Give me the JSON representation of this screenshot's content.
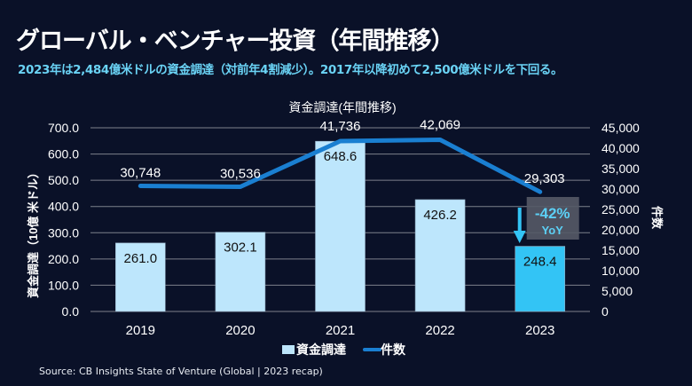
{
  "header": {
    "title": "グローバル・ベンチャー投資（年間推移）",
    "subtitle": "2023年は2,484億米ドルの資金調達（対前年4割減少）。2017年以降初めて2,500億米ドルを下回る。"
  },
  "footer": {
    "source": "Source: CB Insights State of Venture (Global | 2023 recap)"
  },
  "colors": {
    "background": "#0a1128",
    "bar": "#bde6fc",
    "bar_highlight": "#33c4f5",
    "line": "#1a7fd1",
    "gridline": "#7d818b",
    "subtitle": "#6ad3f5",
    "callout_box": "#555a66",
    "callout_text": "#5cd0f5"
  },
  "chart_data": {
    "type": "bar",
    "title": "資金調達(年間推移)",
    "categories": [
      "2019",
      "2020",
      "2021",
      "2022",
      "2023"
    ],
    "series": [
      {
        "name": "資金調達",
        "type": "bar",
        "axis": "left",
        "values": [
          261.0,
          302.1,
          648.6,
          426.2,
          248.4
        ],
        "labels": [
          "261.0",
          "302.1",
          "648.6",
          "426.2",
          "248.4"
        ],
        "highlight_index": 4
      },
      {
        "name": "件数",
        "type": "line",
        "axis": "right",
        "values": [
          30748,
          30536,
          41736,
          42069,
          29303
        ],
        "labels": [
          "30,748",
          "30,536",
          "41,736",
          "42,069",
          "29,303"
        ]
      }
    ],
    "ylabel": "資金調達（10億 米ドル）",
    "ylabel_right": "件数",
    "xlabel": "",
    "ylim": [
      0,
      700
    ],
    "ylim_right": [
      0,
      45000
    ],
    "yticks": [
      "0.0",
      "100.0",
      "200.0",
      "300.0",
      "400.0",
      "500.0",
      "600.0",
      "700.0"
    ],
    "yticks_right": [
      "0",
      "5,000",
      "10,000",
      "15,000",
      "20,000",
      "25,000",
      "30,000",
      "35,000",
      "40,000",
      "45,000"
    ],
    "grid": true,
    "legend": {
      "position": "bottom",
      "entries": [
        "資金調達",
        "件数"
      ]
    },
    "annotation": {
      "text": "-42%",
      "subtext": "YoY",
      "target_category": "2023",
      "arrow": "down"
    }
  }
}
